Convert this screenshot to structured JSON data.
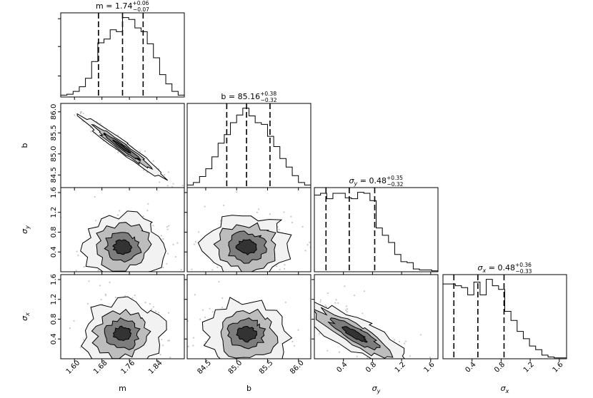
{
  "chart_data": {
    "type": "corner",
    "parameters": [
      {
        "key": "m",
        "label": "m",
        "range": [
          1.56,
          1.92
        ],
        "ticks": [
          1.6,
          1.68,
          1.76,
          1.84
        ],
        "tick_labels": [
          "1.60",
          "1.68",
          "1.76",
          "1.84"
        ],
        "title": "m = 1.74",
        "title_sup": "+0.06",
        "title_sub": "−0.07",
        "title_italic": false,
        "quantiles": [
          1.67,
          1.74,
          1.8
        ],
        "hist": [
          2,
          3,
          6,
          11,
          20,
          38,
          58,
          62,
          72,
          70,
          85,
          83,
          74,
          70,
          57,
          42,
          24,
          14,
          6,
          2
        ]
      },
      {
        "key": "b",
        "label": "b",
        "range": [
          84.2,
          86.2
        ],
        "ticks": [
          84.5,
          85.0,
          85.5,
          86.0
        ],
        "tick_labels": [
          "84.5",
          "85.0",
          "85.5",
          "86.0"
        ],
        "title": "b = 85.16",
        "title_sup": "+0.38",
        "title_sub": "−0.32",
        "title_italic": false,
        "quantiles": [
          84.84,
          85.16,
          85.54
        ],
        "hist": [
          3,
          6,
          13,
          22,
          36,
          52,
          62,
          76,
          85,
          93,
          84,
          76,
          74,
          60,
          48,
          34,
          24,
          14,
          6,
          3
        ]
      },
      {
        "key": "sy",
        "label": "σ",
        "label_sub": "y",
        "range": [
          0,
          1.7
        ],
        "ticks": [
          0.4,
          0.8,
          1.2,
          1.6
        ],
        "tick_labels": [
          "0.4",
          "0.8",
          "1.2",
          "1.6"
        ],
        "title": "σ",
        "title_label_sub": "y",
        "title_value": " = 0.48",
        "title_sup": "+0.35",
        "title_sub": "−0.32",
        "title_italic": true,
        "quantiles": [
          0.16,
          0.48,
          0.83
        ],
        "hist": [
          84,
          86,
          80,
          86,
          86,
          81,
          80,
          87,
          86,
          78,
          48,
          40,
          32,
          19,
          11,
          10,
          3,
          2,
          2,
          1
        ]
      },
      {
        "key": "sx",
        "label": "σ",
        "label_sub": "x",
        "range": [
          0,
          1.7
        ],
        "ticks": [
          0.4,
          0.8,
          1.2,
          1.6
        ],
        "tick_labels": [
          "0.4",
          "0.8",
          "1.2",
          "1.6"
        ],
        "title": "σ",
        "title_label_sub": "x",
        "title_value": " = 0.48",
        "title_sup": "+0.36",
        "title_sub": "−0.33",
        "title_italic": true,
        "quantiles": [
          0.15,
          0.48,
          0.84
        ],
        "hist": [
          82,
          82,
          80,
          78,
          70,
          84,
          70,
          87,
          80,
          76,
          52,
          42,
          30,
          22,
          14,
          10,
          4,
          2,
          1,
          1
        ]
      }
    ],
    "grid": false,
    "legend": "none"
  }
}
